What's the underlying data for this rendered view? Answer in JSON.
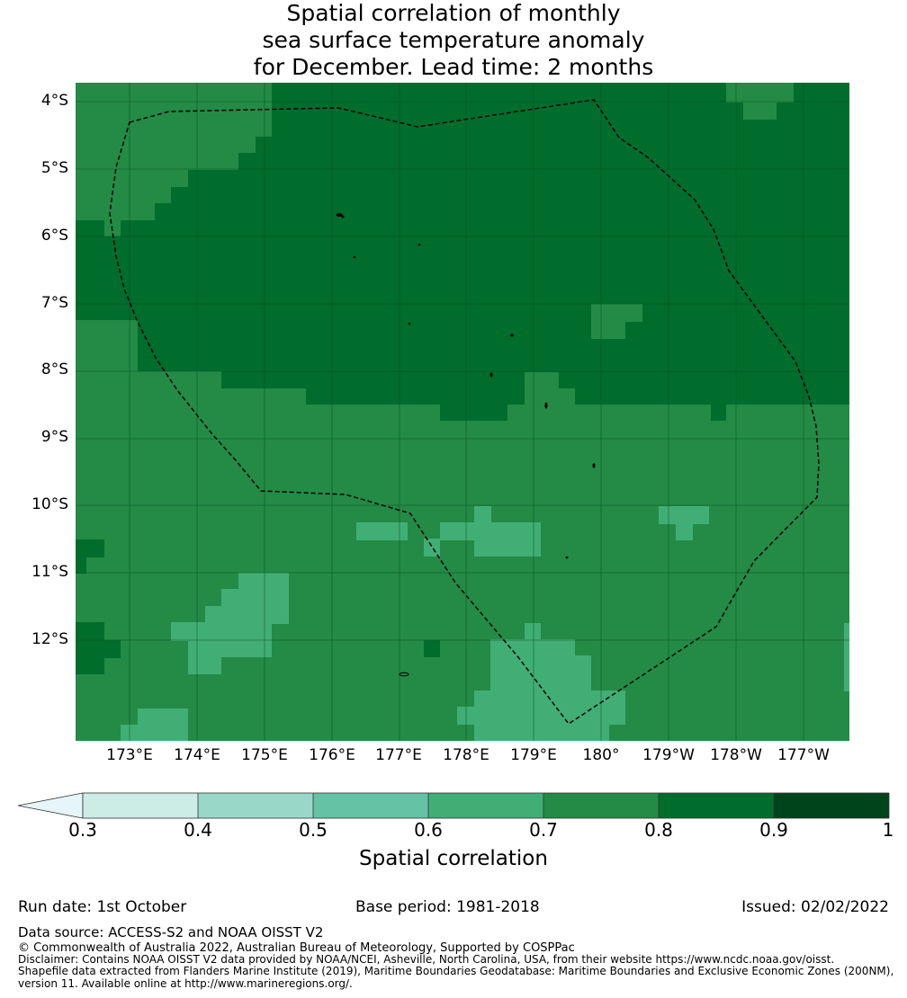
{
  "title": {
    "line1": "Spatial correlation of monthly",
    "line2": "sea surface temperature anomaly",
    "line3": "for December. Lead time: 2 months"
  },
  "map": {
    "lat_labels": [
      "4°S",
      "5°S",
      "6°S",
      "7°S",
      "8°S",
      "9°S",
      "10°S",
      "11°S",
      "12°S"
    ],
    "lon_labels": [
      "173°E",
      "174°E",
      "175°E",
      "176°E",
      "177°E",
      "178°E",
      "179°E",
      "180°",
      "179°W",
      "178°W",
      "177°W"
    ],
    "lat_extent": [
      -13.5,
      -3.75
    ],
    "lon_extent": [
      172.2,
      183.66
    ],
    "colors": {
      "c06_07": "#41ae76",
      "c07_08": "#238b45",
      "c08_09": "#006d2c",
      "grid": "#0a4a22",
      "boundary": "#000000"
    }
  },
  "colorbar": {
    "label": "Spatial correlation",
    "ticks": [
      "0.3",
      "0.4",
      "0.5",
      "0.6",
      "0.7",
      "0.8",
      "0.9",
      "1"
    ],
    "colors": [
      "#e5f5f9",
      "#ccece6",
      "#99d8c9",
      "#66c2a4",
      "#41ae76",
      "#238b45",
      "#006d2c",
      "#00441b"
    ]
  },
  "footer": {
    "run_date": "Run date: 1st October",
    "base_period": "Base period: 1981-2018",
    "issued": "Issued: 02/02/2022",
    "data_source": "Data source: ACCESS-S2 and NOAA OISST V2",
    "copyright": "© Commonwealth of Australia 2022, Australian Bureau of Meteorology, Supported by COSPPac",
    "disclaimer1": "Disclaimer: Contains NOAA OISST V2 data provided by NOAA/NCEI, Asheville, North Carolina, USA, from their website https://www.ncdc.noaa.gov/oisst.",
    "disclaimer2": "Shapefile data extracted from Flanders Marine Institute (2019), Maritime Boundaries Geodatabase: Maritime Boundaries and Exclusive Economic Zones (200NM),",
    "disclaimer3": "version 11. Available online at http://www.marineregions.org/."
  }
}
